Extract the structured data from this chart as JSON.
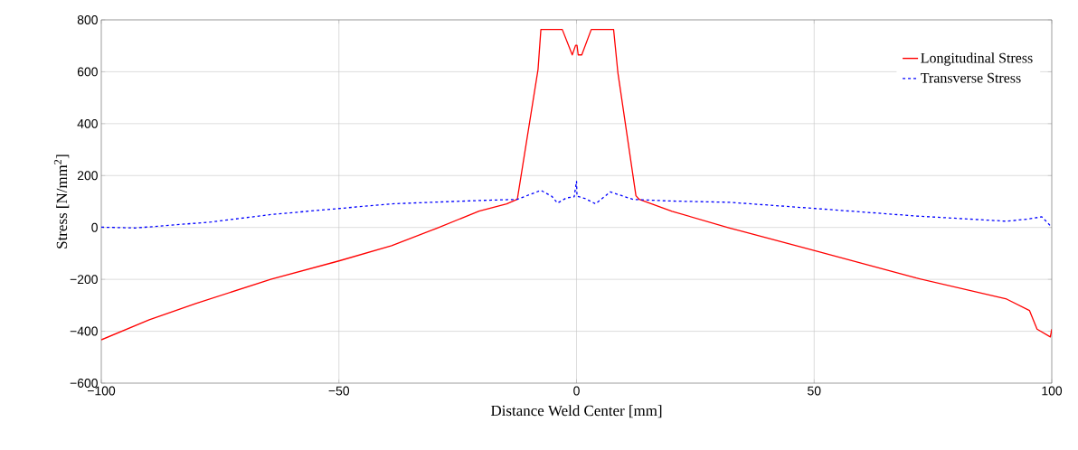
{
  "chart_data": {
    "type": "line",
    "xlabel": "Distance Weld Center [mm]",
    "ylabel": "Stress [N/mm$^{2}$]",
    "xlim": [
      -100,
      100
    ],
    "ylim": [
      -600,
      800
    ],
    "xticks": [
      {
        "value": -100,
        "label": "−100"
      },
      {
        "value": -50,
        "label": "−50"
      },
      0,
      50,
      100
    ],
    "yticks": [
      {
        "value": -600,
        "label": "−600"
      },
      {
        "value": -400,
        "label": "−400"
      },
      {
        "value": -200,
        "label": "−200"
      },
      0,
      200,
      400,
      600,
      800
    ],
    "grid": true,
    "legend": "top right",
    "series": [
      {
        "name": "Longitudinal Stress",
        "color": "#ff0000",
        "line_style": "solid",
        "x": [
          -100,
          -89.9,
          -80.1,
          -64.2,
          -50,
          -38.9,
          -29.4,
          -20.5,
          -14.7,
          -12.5,
          -12.4,
          -8.1,
          -7.5,
          -3.0,
          -0.9,
          -0.2,
          0.1,
          0.35,
          1.1,
          3.1,
          7.8,
          8.7,
          12.5,
          13.2,
          20.1,
          32.2,
          50.3,
          71.5,
          90.5,
          95.3,
          96.9,
          99.7,
          100
        ],
        "values": [
          -433,
          -356,
          -293,
          -199,
          -129,
          -70,
          -3,
          63,
          91,
          108,
          115,
          609,
          763,
          763,
          665,
          702,
          702,
          665,
          665,
          763,
          763,
          597,
          122,
          108,
          62,
          -2,
          -90,
          -195,
          -276,
          -320,
          -392,
          -422,
          -392
        ]
      },
      {
        "name": "Transverse Stress",
        "color": "#0000ff",
        "line_style": "dashed",
        "x": [
          -100,
          -92.8,
          -76.9,
          -64.2,
          -50,
          -38.9,
          -26.2,
          -18.6,
          -12.5,
          -7.5,
          -5.2,
          -4.0,
          -2.1,
          -0.5,
          0,
          0.1,
          1.75,
          4.0,
          7.1,
          11.9,
          19.5,
          32.2,
          50.3,
          71.5,
          90.5,
          95.3,
          97.9,
          100
        ],
        "values": [
          1,
          -2,
          21,
          50,
          73,
          91,
          100,
          105,
          108,
          143,
          120,
          94,
          114,
          118,
          178,
          120,
          112,
          91,
          137,
          108,
          102,
          97,
          73,
          44,
          24,
          33,
          41,
          1
        ]
      }
    ]
  }
}
